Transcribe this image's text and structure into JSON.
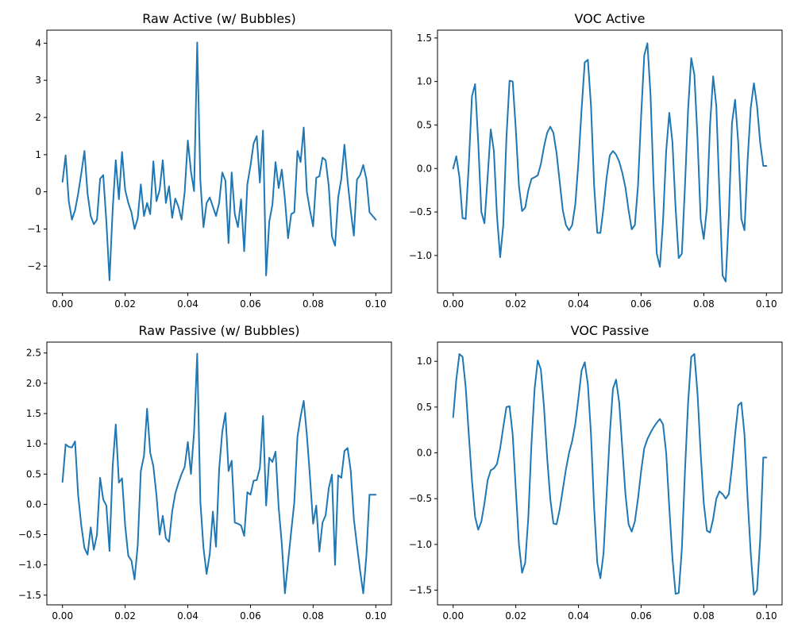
{
  "colors": {
    "line": "#1f77b4"
  },
  "chart_data": [
    {
      "type": "line",
      "title": "Raw Active (w/ Bubbles)",
      "xlim": [
        -0.005,
        0.105
      ],
      "ylim": [
        -2.72,
        4.35
      ],
      "xticks": [
        0.0,
        0.02,
        0.04,
        0.06,
        0.08,
        0.1
      ],
      "xtick_labels": [
        "0.00",
        "0.02",
        "0.04",
        "0.06",
        "0.08",
        "0.10"
      ],
      "yticks": [
        -2,
        -1,
        0,
        1,
        2,
        3,
        4
      ],
      "ytick_labels": [
        "−2",
        "−1",
        "0",
        "1",
        "2",
        "3",
        "4"
      ],
      "grid": false,
      "x": [
        0.0,
        0.001,
        0.002,
        0.003,
        0.004,
        0.005,
        0.006,
        0.007,
        0.008,
        0.009,
        0.01,
        0.011,
        0.012,
        0.013,
        0.014,
        0.015,
        0.016,
        0.017,
        0.018,
        0.019,
        0.02,
        0.021,
        0.022,
        0.023,
        0.024,
        0.025,
        0.026,
        0.027,
        0.028,
        0.029,
        0.03,
        0.031,
        0.032,
        0.033,
        0.034,
        0.035,
        0.036,
        0.037,
        0.038,
        0.039,
        0.04,
        0.041,
        0.042,
        0.043,
        0.044,
        0.045,
        0.046,
        0.047,
        0.048,
        0.049,
        0.05,
        0.051,
        0.052,
        0.053,
        0.054,
        0.055,
        0.056,
        0.057,
        0.058,
        0.059,
        0.06,
        0.061,
        0.062,
        0.063,
        0.064,
        0.065,
        0.066,
        0.067,
        0.068,
        0.069,
        0.07,
        0.071,
        0.072,
        0.073,
        0.074,
        0.075,
        0.076,
        0.077,
        0.078,
        0.079,
        0.08,
        0.081,
        0.082,
        0.083,
        0.084,
        0.085,
        0.086,
        0.087,
        0.088,
        0.089,
        0.09,
        0.091,
        0.092,
        0.093,
        0.094,
        0.095,
        0.096,
        0.097,
        0.098,
        0.099,
        0.1
      ],
      "series": [
        {
          "values": [
            0.27,
            0.98,
            -0.25,
            -0.75,
            -0.5,
            -0.05,
            0.5,
            1.1,
            -0.05,
            -0.65,
            -0.87,
            -0.75,
            0.35,
            0.45,
            -0.8,
            -2.38,
            -0.5,
            0.85,
            -0.2,
            1.07,
            0.05,
            -0.3,
            -0.55,
            -1.0,
            -0.72,
            0.2,
            -0.65,
            -0.3,
            -0.6,
            0.82,
            -0.25,
            0.05,
            0.85,
            -0.3,
            0.15,
            -0.7,
            -0.18,
            -0.4,
            -0.75,
            0.0,
            1.38,
            0.55,
            0.02,
            4.02,
            0.3,
            -0.95,
            -0.3,
            -0.15,
            -0.4,
            -0.65,
            -0.3,
            0.52,
            0.3,
            -1.38,
            0.52,
            -0.6,
            -0.95,
            -0.2,
            -1.6,
            0.2,
            0.7,
            1.3,
            1.5,
            0.25,
            1.65,
            -2.25,
            -0.8,
            -0.35,
            0.8,
            0.1,
            0.6,
            -0.2,
            -1.25,
            -0.6,
            -0.55,
            1.1,
            0.8,
            1.73,
            0.0,
            -0.5,
            -0.93,
            0.38,
            0.42,
            0.92,
            0.85,
            0.15,
            -1.2,
            -1.45,
            -0.15,
            0.35,
            1.27,
            0.3,
            -0.5,
            -1.18,
            0.33,
            0.45,
            0.72,
            0.35,
            -0.55,
            -0.65,
            -0.75
          ]
        }
      ]
    },
    {
      "type": "line",
      "title": "VOC Active",
      "xlim": [
        -0.005,
        0.105
      ],
      "ylim": [
        -1.43,
        1.59
      ],
      "xticks": [
        0.0,
        0.02,
        0.04,
        0.06,
        0.08,
        0.1
      ],
      "xtick_labels": [
        "0.00",
        "0.02",
        "0.04",
        "0.06",
        "0.08",
        "0.10"
      ],
      "yticks": [
        -1.0,
        -0.5,
        0.0,
        0.5,
        1.0,
        1.5
      ],
      "ytick_labels": [
        "−1.0",
        "−0.5",
        "0.0",
        "0.5",
        "1.0",
        "1.5"
      ],
      "grid": false,
      "x": [
        0.0,
        0.001,
        0.002,
        0.003,
        0.004,
        0.005,
        0.006,
        0.007,
        0.008,
        0.009,
        0.01,
        0.011,
        0.012,
        0.013,
        0.014,
        0.015,
        0.016,
        0.017,
        0.018,
        0.019,
        0.02,
        0.021,
        0.022,
        0.023,
        0.024,
        0.025,
        0.026,
        0.027,
        0.028,
        0.029,
        0.03,
        0.031,
        0.032,
        0.033,
        0.034,
        0.035,
        0.036,
        0.037,
        0.038,
        0.039,
        0.04,
        0.041,
        0.042,
        0.043,
        0.044,
        0.045,
        0.046,
        0.047,
        0.048,
        0.049,
        0.05,
        0.051,
        0.052,
        0.053,
        0.054,
        0.055,
        0.056,
        0.057,
        0.058,
        0.059,
        0.06,
        0.061,
        0.062,
        0.063,
        0.064,
        0.065,
        0.066,
        0.067,
        0.068,
        0.069,
        0.07,
        0.071,
        0.072,
        0.073,
        0.074,
        0.075,
        0.076,
        0.077,
        0.078,
        0.079,
        0.08,
        0.081,
        0.082,
        0.083,
        0.084,
        0.085,
        0.086,
        0.087,
        0.088,
        0.089,
        0.09,
        0.091,
        0.092,
        0.093,
        0.094,
        0.095,
        0.096,
        0.097,
        0.098,
        0.099,
        0.1
      ],
      "series": [
        {
          "values": [
            0.0,
            0.14,
            -0.1,
            -0.57,
            -0.58,
            0.05,
            0.83,
            0.97,
            0.3,
            -0.5,
            -0.63,
            -0.1,
            0.45,
            0.2,
            -0.55,
            -1.02,
            -0.65,
            0.35,
            1.01,
            1.0,
            0.45,
            -0.2,
            -0.49,
            -0.45,
            -0.25,
            -0.12,
            -0.1,
            -0.08,
            0.05,
            0.25,
            0.41,
            0.48,
            0.41,
            0.18,
            -0.15,
            -0.48,
            -0.65,
            -0.71,
            -0.65,
            -0.41,
            0.08,
            0.68,
            1.22,
            1.25,
            0.72,
            -0.2,
            -0.74,
            -0.74,
            -0.45,
            -0.1,
            0.15,
            0.2,
            0.16,
            0.08,
            -0.05,
            -0.22,
            -0.48,
            -0.7,
            -0.65,
            -0.2,
            0.6,
            1.3,
            1.44,
            0.85,
            -0.2,
            -0.98,
            -1.13,
            -0.6,
            0.2,
            0.64,
            0.3,
            -0.45,
            -1.03,
            -0.98,
            -0.2,
            0.68,
            1.27,
            1.08,
            0.35,
            -0.58,
            -0.81,
            -0.45,
            0.5,
            1.06,
            0.72,
            -0.28,
            -1.23,
            -1.3,
            -0.55,
            0.52,
            0.79,
            0.3,
            -0.58,
            -0.71,
            0.1,
            0.7,
            0.98,
            0.72,
            0.3,
            0.03,
            0.03
          ]
        }
      ]
    },
    {
      "type": "line",
      "title": "Raw Passive (w/ Bubbles)",
      "xlim": [
        -0.005,
        0.105
      ],
      "ylim": [
        -1.66,
        2.68
      ],
      "xticks": [
        0.0,
        0.02,
        0.04,
        0.06,
        0.08,
        0.1
      ],
      "xtick_labels": [
        "0.00",
        "0.02",
        "0.04",
        "0.06",
        "0.08",
        "0.10"
      ],
      "yticks": [
        -1.5,
        -1.0,
        -0.5,
        0.0,
        0.5,
        1.0,
        1.5,
        2.0,
        2.5
      ],
      "ytick_labels": [
        "−1.5",
        "−1.0",
        "−0.5",
        "0.0",
        "0.5",
        "1.0",
        "1.5",
        "2.0",
        "2.5"
      ],
      "grid": false,
      "x": [
        0.0,
        0.001,
        0.002,
        0.003,
        0.004,
        0.005,
        0.006,
        0.007,
        0.008,
        0.009,
        0.01,
        0.011,
        0.012,
        0.013,
        0.014,
        0.015,
        0.016,
        0.017,
        0.018,
        0.019,
        0.02,
        0.021,
        0.022,
        0.023,
        0.024,
        0.025,
        0.026,
        0.027,
        0.028,
        0.029,
        0.03,
        0.031,
        0.032,
        0.033,
        0.034,
        0.035,
        0.036,
        0.037,
        0.038,
        0.039,
        0.04,
        0.041,
        0.042,
        0.043,
        0.044,
        0.045,
        0.046,
        0.047,
        0.048,
        0.049,
        0.05,
        0.051,
        0.052,
        0.053,
        0.054,
        0.055,
        0.056,
        0.057,
        0.058,
        0.059,
        0.06,
        0.061,
        0.062,
        0.063,
        0.064,
        0.065,
        0.066,
        0.067,
        0.068,
        0.069,
        0.07,
        0.071,
        0.072,
        0.073,
        0.074,
        0.075,
        0.076,
        0.077,
        0.078,
        0.079,
        0.08,
        0.081,
        0.082,
        0.083,
        0.084,
        0.085,
        0.086,
        0.087,
        0.088,
        0.089,
        0.09,
        0.091,
        0.092,
        0.093,
        0.094,
        0.095,
        0.096,
        0.097,
        0.098,
        0.099,
        0.1
      ],
      "series": [
        {
          "values": [
            0.37,
            0.99,
            0.95,
            0.94,
            1.04,
            0.15,
            -0.35,
            -0.72,
            -0.83,
            -0.38,
            -0.75,
            -0.5,
            0.44,
            0.08,
            -0.02,
            -0.77,
            0.62,
            1.32,
            0.36,
            0.43,
            -0.35,
            -0.85,
            -0.93,
            -1.24,
            -0.68,
            0.55,
            0.8,
            1.58,
            0.85,
            0.63,
            0.15,
            -0.5,
            -0.19,
            -0.56,
            -0.62,
            -0.12,
            0.18,
            0.35,
            0.5,
            0.62,
            1.03,
            0.5,
            1.2,
            2.49,
            0.05,
            -0.72,
            -1.15,
            -0.82,
            -0.12,
            -0.7,
            0.58,
            1.2,
            1.51,
            0.55,
            0.72,
            -0.3,
            -0.32,
            -0.35,
            -0.52,
            0.2,
            0.16,
            0.39,
            0.4,
            0.6,
            1.46,
            -0.02,
            0.77,
            0.7,
            0.87,
            -0.05,
            -0.65,
            -1.47,
            -0.95,
            -0.45,
            0.04,
            1.12,
            1.45,
            1.71,
            1.15,
            0.45,
            -0.32,
            -0.02,
            -0.78,
            -0.3,
            -0.18,
            0.27,
            0.49,
            -1.0,
            0.48,
            0.44,
            0.88,
            0.93,
            0.56,
            -0.24,
            -0.68,
            -1.1,
            -1.47,
            -0.85,
            0.16,
            0.16,
            0.16
          ]
        }
      ]
    },
    {
      "type": "line",
      "title": "VOC Passive",
      "xlim": [
        -0.005,
        0.105
      ],
      "ylim": [
        -1.66,
        1.21
      ],
      "xticks": [
        0.0,
        0.02,
        0.04,
        0.06,
        0.08,
        0.1
      ],
      "xtick_labels": [
        "0.00",
        "0.02",
        "0.04",
        "0.06",
        "0.08",
        "0.10"
      ],
      "yticks": [
        -1.5,
        -1.0,
        -0.5,
        0.0,
        0.5,
        1.0
      ],
      "ytick_labels": [
        "−1.5",
        "−1.0",
        "−0.5",
        "0.0",
        "0.5",
        "1.0"
      ],
      "grid": false,
      "x": [
        0.0,
        0.001,
        0.002,
        0.003,
        0.004,
        0.005,
        0.006,
        0.007,
        0.008,
        0.009,
        0.01,
        0.011,
        0.012,
        0.013,
        0.014,
        0.015,
        0.016,
        0.017,
        0.018,
        0.019,
        0.02,
        0.021,
        0.022,
        0.023,
        0.024,
        0.025,
        0.026,
        0.027,
        0.028,
        0.029,
        0.03,
        0.031,
        0.032,
        0.033,
        0.034,
        0.035,
        0.036,
        0.037,
        0.038,
        0.039,
        0.04,
        0.041,
        0.042,
        0.043,
        0.044,
        0.045,
        0.046,
        0.047,
        0.048,
        0.049,
        0.05,
        0.051,
        0.052,
        0.053,
        0.054,
        0.055,
        0.056,
        0.057,
        0.058,
        0.059,
        0.06,
        0.061,
        0.062,
        0.063,
        0.064,
        0.065,
        0.066,
        0.067,
        0.068,
        0.069,
        0.07,
        0.071,
        0.072,
        0.073,
        0.074,
        0.075,
        0.076,
        0.077,
        0.078,
        0.079,
        0.08,
        0.081,
        0.082,
        0.083,
        0.084,
        0.085,
        0.086,
        0.087,
        0.088,
        0.089,
        0.09,
        0.091,
        0.092,
        0.093,
        0.094,
        0.095,
        0.096,
        0.097,
        0.098,
        0.099,
        0.1
      ],
      "series": [
        {
          "values": [
            0.39,
            0.8,
            1.08,
            1.05,
            0.72,
            0.2,
            -0.3,
            -0.7,
            -0.84,
            -0.75,
            -0.55,
            -0.3,
            -0.19,
            -0.17,
            -0.12,
            0.05,
            0.28,
            0.5,
            0.51,
            0.2,
            -0.4,
            -1.0,
            -1.31,
            -1.2,
            -0.7,
            0.1,
            0.7,
            1.01,
            0.91,
            0.5,
            -0.05,
            -0.5,
            -0.77,
            -0.78,
            -0.62,
            -0.4,
            -0.18,
            0.0,
            0.13,
            0.32,
            0.6,
            0.9,
            0.99,
            0.75,
            0.2,
            -0.6,
            -1.2,
            -1.37,
            -1.1,
            -0.45,
            0.2,
            0.7,
            0.8,
            0.55,
            0.05,
            -0.45,
            -0.78,
            -0.86,
            -0.75,
            -0.5,
            -0.2,
            0.05,
            0.15,
            0.22,
            0.28,
            0.33,
            0.37,
            0.31,
            0.0,
            -0.6,
            -1.15,
            -1.54,
            -1.53,
            -1.05,
            -0.2,
            0.55,
            1.05,
            1.08,
            0.65,
            0.0,
            -0.55,
            -0.85,
            -0.87,
            -0.72,
            -0.5,
            -0.42,
            -0.45,
            -0.5,
            -0.45,
            -0.15,
            0.2,
            0.52,
            0.55,
            0.2,
            -0.5,
            -1.1,
            -1.55,
            -1.5,
            -0.95,
            -0.05,
            -0.05
          ]
        }
      ]
    }
  ]
}
